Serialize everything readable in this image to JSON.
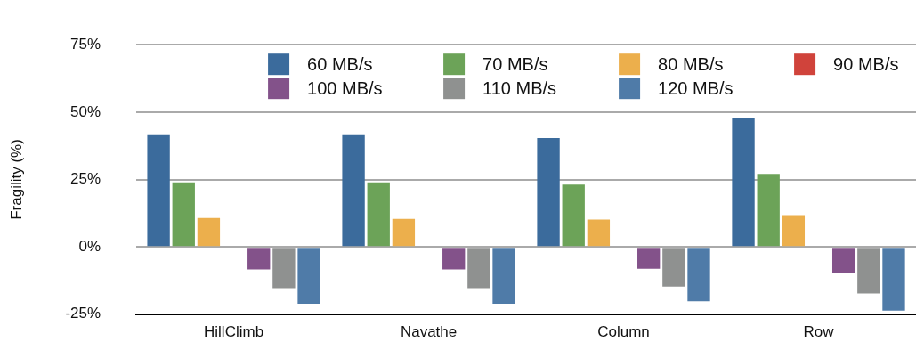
{
  "chart_data": {
    "type": "bar",
    "ylabel": "Fragility (%)",
    "categories": [
      "HillClimb",
      "Navathe",
      "Column",
      "Row"
    ],
    "series": [
      {
        "name": "60 MB/s",
        "color": "#3b6b9c",
        "values": [
          41.8,
          41.8,
          40.4,
          47.6
        ]
      },
      {
        "name": "70 MB/s",
        "color": "#6ca358",
        "values": [
          23.9,
          23.9,
          23.1,
          27.1
        ]
      },
      {
        "name": "80 MB/s",
        "color": "#ecaf4c",
        "values": [
          10.7,
          10.4,
          10.1,
          11.8
        ]
      },
      {
        "name": "90 MB/s",
        "color": "#d0433b",
        "values": [
          0,
          0,
          0,
          0
        ]
      },
      {
        "name": "100 MB/s",
        "color": "#83528a",
        "values": [
          -8.4,
          -8.4,
          -8.1,
          -9.5
        ]
      },
      {
        "name": "110 MB/s",
        "color": "#8f9190",
        "values": [
          -15.3,
          -15.3,
          -14.7,
          -17.3
        ]
      },
      {
        "name": "120 MB/s",
        "color": "#4f7ba8",
        "values": [
          -21.1,
          -21.1,
          -20.2,
          -23.7
        ]
      }
    ],
    "ylim": [
      -25,
      75
    ],
    "yticks": [
      {
        "value": -25,
        "label": "-25%"
      },
      {
        "value": 0,
        "label": "0%"
      },
      {
        "value": 25,
        "label": "25%"
      },
      {
        "value": 50,
        "label": "50%"
      },
      {
        "value": 75,
        "label": "75%"
      }
    ],
    "grid": "y",
    "legend": "top"
  }
}
